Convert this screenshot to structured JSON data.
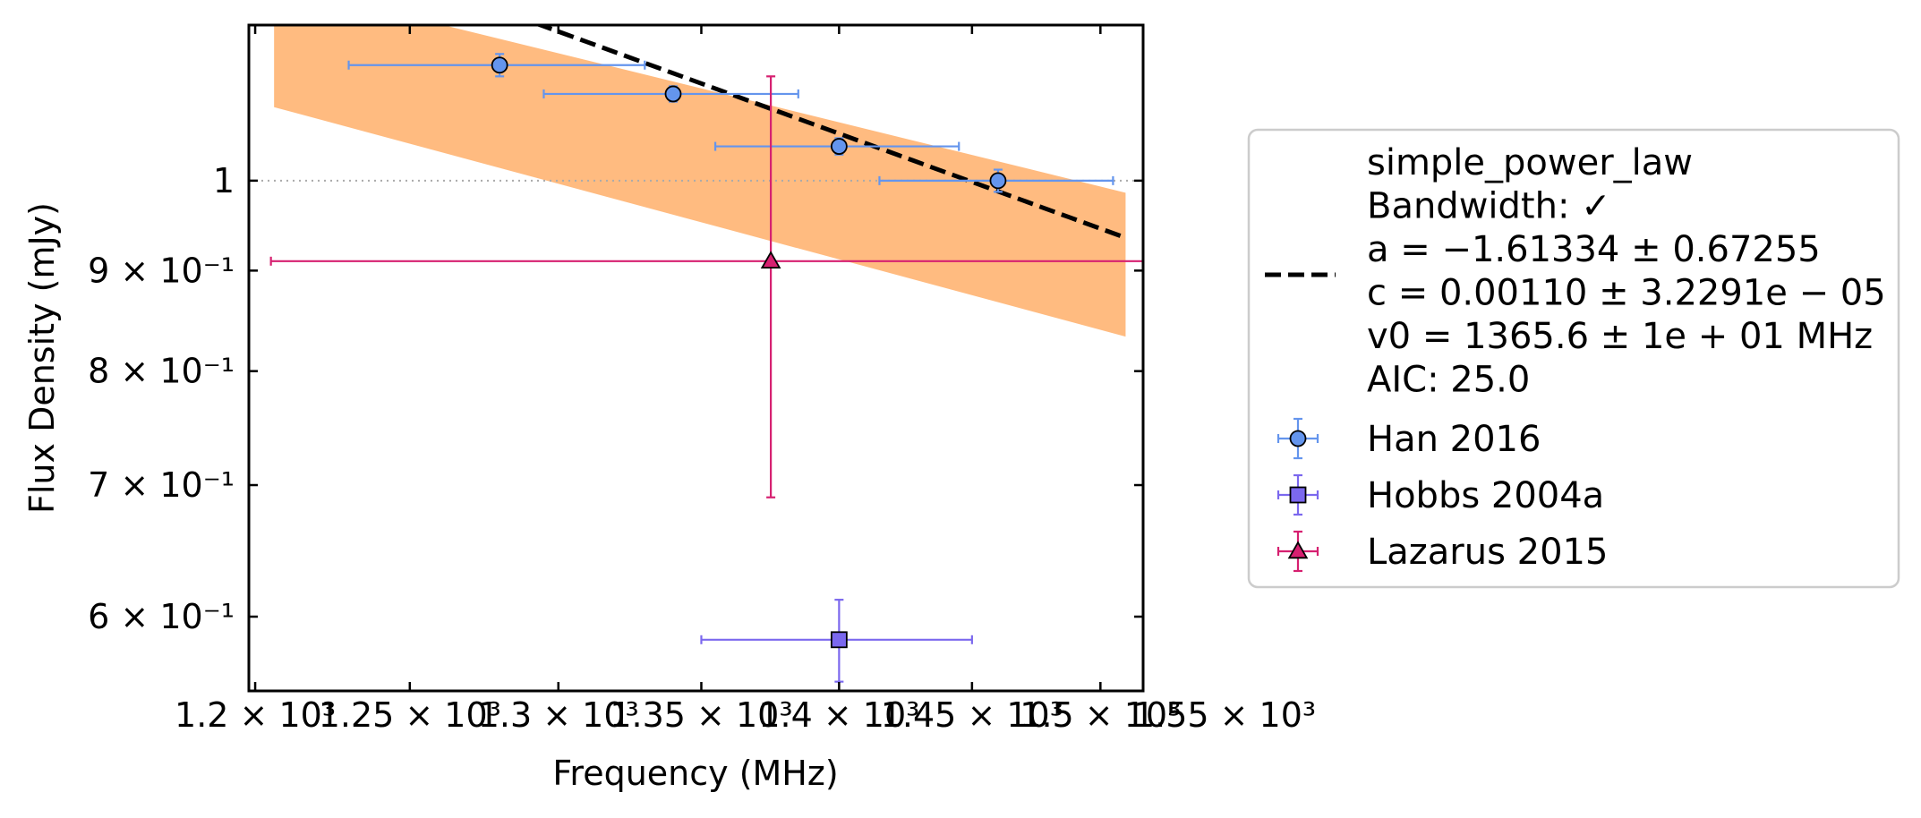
{
  "chart_data": {
    "type": "scatter",
    "title": "",
    "xlabel": "Frequency (MHz)",
    "ylabel": "Flux Density (mJy)",
    "x_scale": "log",
    "y_scale": "log",
    "xlim": [
      1198,
      1517
    ],
    "ylim": [
      0.55,
      1.2
    ],
    "x_ticks": [
      {
        "value": 1200,
        "label": "1.2 × 10³"
      },
      {
        "value": 1250,
        "label": "1.25 × 10³"
      },
      {
        "value": 1300,
        "label": "1.3 × 10³"
      },
      {
        "value": 1350,
        "label": "1.35 × 10³"
      },
      {
        "value": 1400,
        "label": "1.4 × 10³"
      },
      {
        "value": 1450,
        "label": "1.45 × 10³"
      },
      {
        "value": 1500,
        "label": "1.5 × 10³"
      },
      {
        "value": 1550,
        "label": "1.55 × 10³"
      }
    ],
    "y_ticks": [
      {
        "value": 0.6,
        "label": "6 × 10⁻¹"
      },
      {
        "value": 0.7,
        "label": "7 × 10⁻¹"
      },
      {
        "value": 0.8,
        "label": "8 × 10⁻¹"
      },
      {
        "value": 0.9,
        "label": "9 × 10⁻¹"
      },
      {
        "value": 1.0,
        "label": "1"
      }
    ],
    "reference_line": {
      "y": 1.0,
      "style": "dotted",
      "color": "#aaaaaa"
    },
    "fit": {
      "label_lines": [
        "simple_power_law",
        "Bandwidth: ✓",
        "a = −1.61334 ± 0.67255",
        "c = 0.00110 ± 3.2291e − 05",
        "v0 = 1365.6 ± 1e + 01 MHz",
        "AIC: 25.0"
      ],
      "a": -1.61334,
      "c": 0.0011,
      "v0": 1365.6,
      "x_range": [
        1206,
        1510
      ],
      "band": [
        {
          "x": 1206,
          "lo": 1.09,
          "hi": 1.26
        },
        {
          "x": 1510,
          "lo": 0.833,
          "hi": 0.986
        }
      ],
      "line_color": "#000000",
      "band_color": "#ffbb80"
    },
    "series": [
      {
        "name": "Han 2016",
        "marker": "circle",
        "color": "#6495ed",
        "points": [
          {
            "x": 1280,
            "y": 1.145,
            "xerr": 50,
            "yerr": 0.015
          },
          {
            "x": 1340,
            "y": 1.107,
            "xerr": 45,
            "yerr": 0.01
          },
          {
            "x": 1400,
            "y": 1.041,
            "xerr": 45,
            "yerr": 0.01
          },
          {
            "x": 1460,
            "y": 1.0,
            "xerr": 45,
            "yerr": 0.013
          }
        ]
      },
      {
        "name": "Hobbs 2004a",
        "marker": "square",
        "color": "#7b68ee",
        "points": [
          {
            "x": 1400,
            "y": 0.584,
            "xerr": 50,
            "yerr": 0.028
          }
        ]
      },
      {
        "name": "Lazarus 2015",
        "marker": "triangle",
        "color": "#d62070",
        "points": [
          {
            "x": 1375,
            "y": 0.91,
            "xerr": 170,
            "yerr": 0.22
          }
        ]
      }
    ],
    "legend": {
      "placement": "outside-right"
    }
  }
}
